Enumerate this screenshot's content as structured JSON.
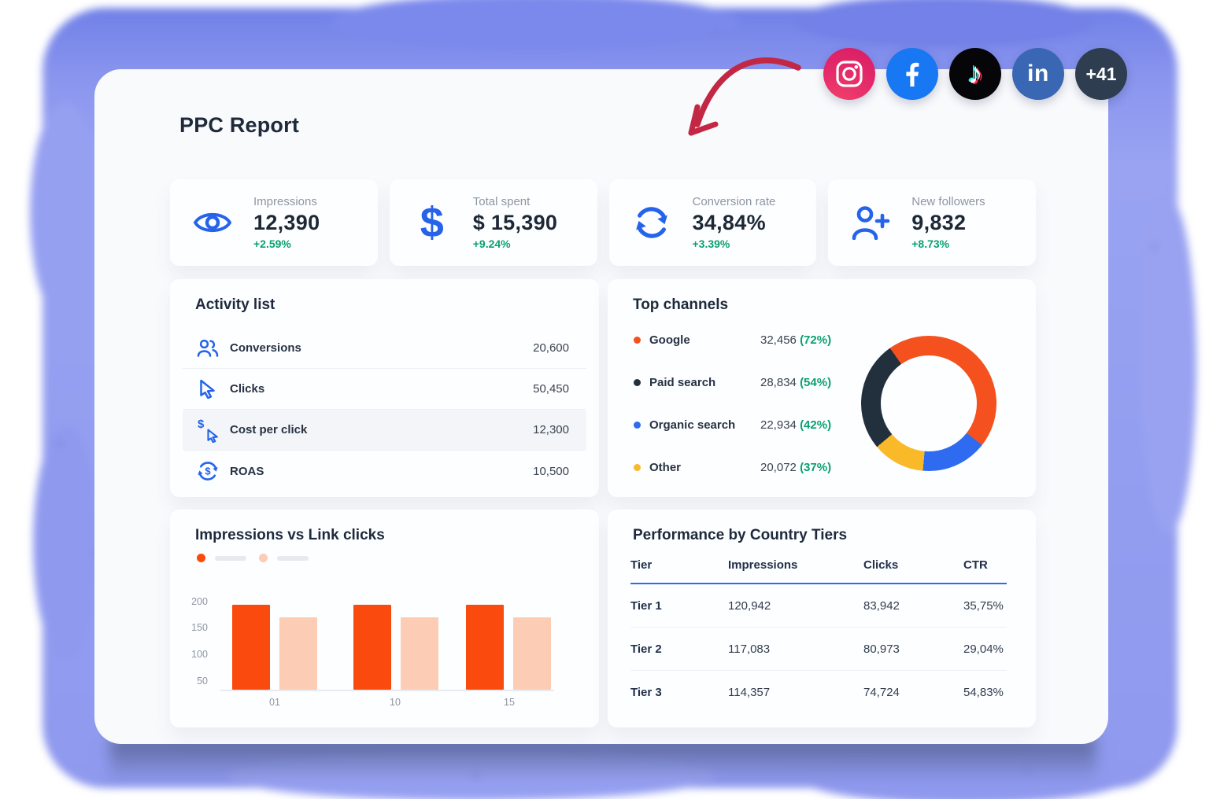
{
  "report": {
    "title": "PPC Report"
  },
  "social": {
    "icons": [
      {
        "name": "instagram"
      },
      {
        "name": "facebook"
      },
      {
        "name": "tiktok"
      },
      {
        "name": "linkedin"
      }
    ],
    "overflow_label": "+41"
  },
  "kpis": [
    {
      "label": "Impressions",
      "value": "12,390",
      "delta": "+2.59%",
      "icon": "eye"
    },
    {
      "label": "Total spent",
      "value": "$ 15,390",
      "delta": "+9.24%",
      "icon": "dollar"
    },
    {
      "label": "Conversion rate",
      "value": "34,84%",
      "delta": "+3.39%",
      "icon": "refresh"
    },
    {
      "label": "New followers",
      "value": "9,832",
      "delta": "+8.73%",
      "icon": "person-plus"
    }
  ],
  "activity": {
    "title": "Activity list",
    "rows": [
      {
        "label": "Conversions",
        "value": "20,600",
        "icon": "people"
      },
      {
        "label": "Clicks",
        "value": "50,450",
        "icon": "cursor"
      },
      {
        "label": "Cost per click",
        "value": "12,300",
        "icon": "dollar-cursor"
      },
      {
        "label": "ROAS",
        "value": "10,500",
        "icon": "dollar-cycle"
      }
    ]
  },
  "channels": {
    "title": "Top channels",
    "items": [
      {
        "label": "Google",
        "value": "32,456",
        "pct": "(72%)",
        "color": "#f4511e"
      },
      {
        "label": "Paid search",
        "value": "28,834",
        "pct": "(54%)",
        "color": "#22303e"
      },
      {
        "label": "Organic search",
        "value": "22,934",
        "pct": "(42%)",
        "color": "#2e6bf0"
      },
      {
        "label": "Other",
        "value": "20,072",
        "pct": "(37%)",
        "color": "#f9b928"
      }
    ]
  },
  "country_table": {
    "title": "Performance by Country Tiers",
    "headers": [
      "Tier",
      "Impressions",
      "Clicks",
      "CTR"
    ],
    "rows": [
      [
        "Tier 1",
        "120,942",
        "83,942",
        "35,75%"
      ],
      [
        "Tier 2",
        "117,083",
        "80,973",
        "29,04%"
      ],
      [
        "Tier 3",
        "114,357",
        "74,724",
        "54,83%"
      ]
    ]
  },
  "chart_data": [
    {
      "type": "pie",
      "subtype": "donut",
      "title": "Top channels",
      "labels": [
        "Google",
        "Paid search",
        "Organic search",
        "Other"
      ],
      "values": [
        32456,
        28834,
        22934,
        20072
      ],
      "pct_labels": [
        "72%",
        "54%",
        "42%",
        "37%"
      ],
      "colors": [
        "#f4511e",
        "#22303e",
        "#2e6bf0",
        "#f9b928"
      ],
      "legend_position": "left",
      "start_deg": -35,
      "ring": [
        {
          "label": "Google",
          "color": "#f4511e",
          "deg": 163
        },
        {
          "label": "Organic search",
          "color": "#2e6bf0",
          "deg": 57
        },
        {
          "label": "Other",
          "color": "#f9b928",
          "deg": 45
        },
        {
          "label": "Paid search",
          "color": "#22303e",
          "deg": 95
        }
      ]
    },
    {
      "type": "bar",
      "title": "Impressions vs Link clicks",
      "categories": [
        "01",
        "10",
        "15"
      ],
      "series": [
        {
          "name": "Impressions",
          "color": "#fb4a0e",
          "values": [
            195,
            195,
            195
          ]
        },
        {
          "name": "Link clicks",
          "color": "#fcccb4",
          "values": [
            172,
            172,
            172
          ]
        }
      ],
      "yticks": [
        50,
        100,
        150,
        200
      ],
      "ylim": [
        35,
        210
      ],
      "grid": false,
      "legend_position": "top-left"
    }
  ],
  "colors": {
    "accent_blue": "#2563eb",
    "green": "#0aa06e",
    "orange": "#f4511e",
    "peach": "#fcccb4",
    "navy": "#22303e",
    "yellow": "#f9b928",
    "splash": "#96a0f1",
    "arrow_red": "#c22743"
  }
}
